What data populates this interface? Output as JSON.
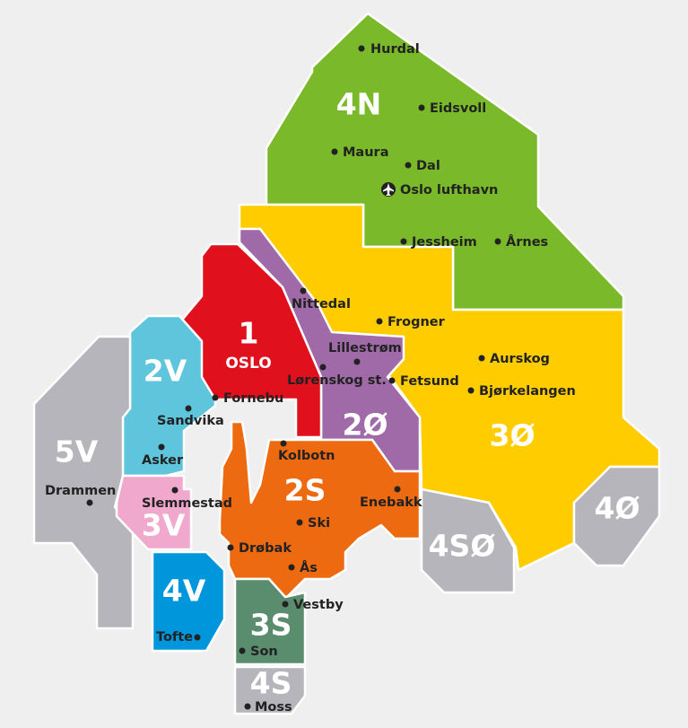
{
  "zones": [
    {
      "label": "4N",
      "places": [
        "Hurdal",
        "Eidsvoll",
        "Maura",
        "Dal",
        "Oslo lufthavn",
        "Jessheim",
        "Årnes"
      ]
    },
    {
      "label": "3Ø",
      "places": [
        "Frogner",
        "Aurskog",
        "Fetsund",
        "Bjørkelangen"
      ]
    },
    {
      "label": "2Ø",
      "places": [
        "Nittedal",
        "Lillestrøm",
        "Lørenskog st."
      ]
    },
    {
      "label": "1",
      "sublabel": "OSLO",
      "places": [
        "Fornebu"
      ]
    },
    {
      "label": "2V",
      "places": [
        "Sandvika",
        "Asker"
      ]
    },
    {
      "label": "5V",
      "places": [
        "Drammen"
      ]
    },
    {
      "label": "3V",
      "places": [
        "Slemmestad"
      ]
    },
    {
      "label": "4V",
      "places": [
        "Tofte"
      ]
    },
    {
      "label": "2S",
      "places": [
        "Kolbotn",
        "Enebakk",
        "Ski",
        "Drøbak",
        "Ås"
      ]
    },
    {
      "label": "3S",
      "places": [
        "Vestby",
        "Son"
      ]
    },
    {
      "label": "4S",
      "places": [
        "Moss"
      ]
    },
    {
      "label": "4SØ"
    },
    {
      "label": "4Ø"
    }
  ]
}
